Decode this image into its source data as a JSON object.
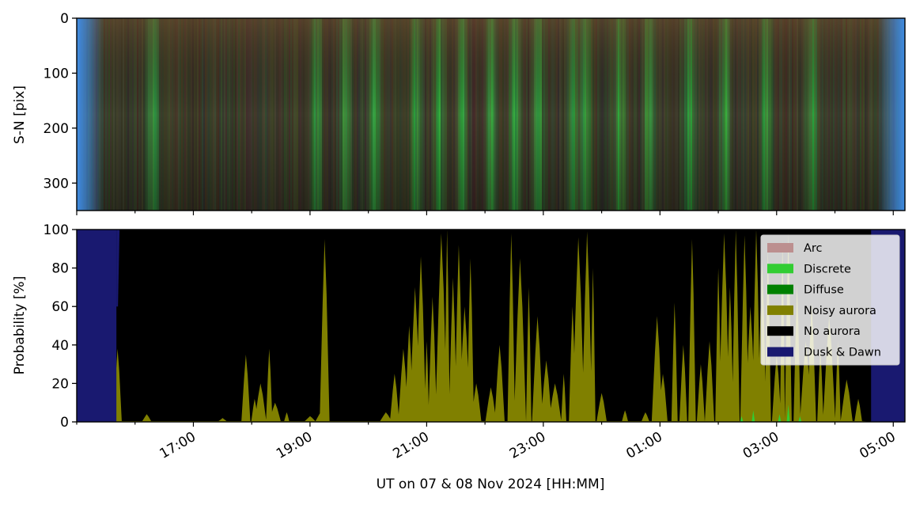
{
  "chart_data": [
    {
      "type": "heatmap",
      "name": "keogram",
      "ylabel": "S-N [pix]",
      "ylim": [
        350,
        0
      ],
      "yticks": [
        0,
        100,
        200,
        300
      ],
      "x_range_hours": [
        15.0,
        29.2
      ],
      "colors": {
        "edge": "#3f8fe8",
        "base": "#3a3026",
        "green": "#4fae3f",
        "bright_green": "#7fd06a"
      },
      "bright_bands_ut_hours": [
        16.3,
        19.1,
        19.6,
        20.1,
        20.8,
        21.2,
        21.6,
        22.1,
        22.5,
        22.9,
        23.5,
        23.7,
        24.3,
        24.8,
        25.5,
        26.1,
        26.8,
        27.6
      ]
    },
    {
      "type": "area",
      "name": "probability",
      "ylabel": "Probability [%]",
      "ylim": [
        0,
        100
      ],
      "yticks": [
        0,
        20,
        40,
        60,
        80,
        100
      ],
      "xlabel": "UT on 07 & 08 Nov 2024 [HH:MM]",
      "x_range_hours": [
        15.0,
        29.2
      ],
      "xtick_hours": [
        17,
        19,
        21,
        23,
        25,
        27,
        29
      ],
      "xtick_labels": [
        "17:00",
        "19:00",
        "21:00",
        "23:00",
        "01:00",
        "03:00",
        "05:00"
      ],
      "legend_position": "top-right",
      "series": [
        {
          "name": "Arc",
          "color": "#bc8f8f"
        },
        {
          "name": "Discrete",
          "color": "#32cd32"
        },
        {
          "name": "Diffuse",
          "color": "#008000"
        },
        {
          "name": "Noisy aurora",
          "color": "#808000"
        },
        {
          "name": "No aurora",
          "color": "#000000"
        },
        {
          "name": "Dusk & Dawn",
          "color": "#191970"
        }
      ],
      "dusk_end_hour": 15.68,
      "dawn_start_hour": 28.62,
      "noisy_aurora_peaks": [
        [
          15.7,
          38
        ],
        [
          16.2,
          4
        ],
        [
          17.5,
          2
        ],
        [
          17.9,
          35
        ],
        [
          18.05,
          12
        ],
        [
          18.15,
          20
        ],
        [
          18.3,
          38
        ],
        [
          18.4,
          10
        ],
        [
          18.6,
          5
        ],
        [
          19.0,
          3
        ],
        [
          19.2,
          6
        ],
        [
          19.25,
          95
        ],
        [
          20.3,
          5
        ],
        [
          20.45,
          25
        ],
        [
          20.6,
          38
        ],
        [
          20.7,
          50
        ],
        [
          20.8,
          70
        ],
        [
          20.9,
          86
        ],
        [
          21.0,
          42
        ],
        [
          21.1,
          65
        ],
        [
          21.25,
          98
        ],
        [
          21.35,
          100
        ],
        [
          21.45,
          75
        ],
        [
          21.55,
          92
        ],
        [
          21.65,
          60
        ],
        [
          21.75,
          85
        ],
        [
          21.85,
          20
        ],
        [
          22.1,
          18
        ],
        [
          22.25,
          40
        ],
        [
          22.45,
          98
        ],
        [
          22.6,
          85
        ],
        [
          22.75,
          70
        ],
        [
          22.9,
          55
        ],
        [
          23.05,
          32
        ],
        [
          23.2,
          20
        ],
        [
          23.35,
          25
        ],
        [
          23.5,
          60
        ],
        [
          23.6,
          96
        ],
        [
          23.75,
          99
        ],
        [
          23.85,
          80
        ],
        [
          24.0,
          15
        ],
        [
          24.4,
          6
        ],
        [
          24.75,
          5
        ],
        [
          24.95,
          55
        ],
        [
          25.05,
          25
        ],
        [
          25.25,
          62
        ],
        [
          25.4,
          40
        ],
        [
          25.55,
          95
        ],
        [
          25.7,
          30
        ],
        [
          25.85,
          42
        ],
        [
          26.0,
          80
        ],
        [
          26.1,
          98
        ],
        [
          26.2,
          70
        ],
        [
          26.3,
          100
        ],
        [
          26.45,
          97
        ],
        [
          26.55,
          60
        ],
        [
          26.65,
          100
        ],
        [
          26.75,
          85
        ],
        [
          26.85,
          90
        ],
        [
          27.0,
          35
        ],
        [
          27.1,
          95
        ],
        [
          27.2,
          98
        ],
        [
          27.35,
          72
        ],
        [
          27.5,
          42
        ],
        [
          27.6,
          62
        ],
        [
          27.75,
          38
        ],
        [
          27.9,
          55
        ],
        [
          28.05,
          42
        ],
        [
          28.2,
          22
        ],
        [
          28.4,
          12
        ]
      ]
    }
  ]
}
